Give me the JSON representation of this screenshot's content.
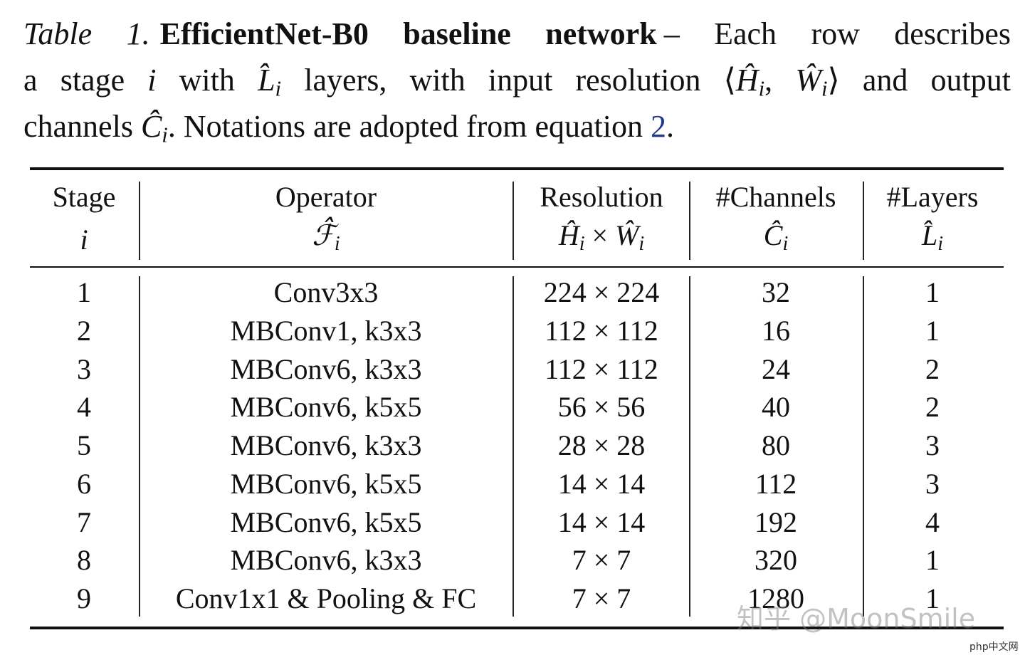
{
  "caption": {
    "lines": [
      [
        {
          "text": "Table 1.",
          "style": "italic"
        },
        {
          "text": "EfficientNet-B0 baseline network",
          "style": "bold"
        },
        {
          "text": "– Each row describes"
        }
      ],
      [
        {
          "text": "a stage "
        },
        {
          "text": "i",
          "style": "math"
        },
        {
          "text": " with "
        },
        {
          "text": "L̂",
          "style": "math",
          "sub": "i"
        },
        {
          "text": " layers, with input resolution ⟨"
        },
        {
          "text": "Ĥ",
          "style": "math",
          "sub": "i"
        },
        {
          "text": ", "
        },
        {
          "text": "Ŵ",
          "style": "math",
          "sub": "i"
        },
        {
          "text": "⟩ and output"
        }
      ],
      [
        {
          "text": "channels "
        },
        {
          "text": "Ĉ",
          "style": "math",
          "sub": "i"
        },
        {
          "text": ". Notations are adopted from equation "
        },
        {
          "text": "2",
          "style": "link"
        },
        {
          "text": "."
        }
      ]
    ]
  },
  "table": {
    "columns": [
      {
        "title": "Stage",
        "symbol": [
          {
            "text": "i",
            "style": "math"
          }
        ]
      },
      {
        "title": "Operator",
        "symbol": [
          {
            "text": "ℱ̂",
            "style": "math",
            "sub": "i"
          }
        ]
      },
      {
        "title": "Resolution",
        "symbol": [
          {
            "text": "Ĥ",
            "style": "math",
            "sub": "i"
          },
          {
            "text": " × "
          },
          {
            "text": "Ŵ",
            "style": "math",
            "sub": "i"
          }
        ]
      },
      {
        "title": "#Channels",
        "symbol": [
          {
            "text": "Ĉ",
            "style": "math",
            "sub": "i"
          }
        ]
      },
      {
        "title": "#Layers",
        "symbol": [
          {
            "text": "L̂",
            "style": "math",
            "sub": "i"
          }
        ]
      }
    ],
    "rows": [
      [
        1,
        "Conv3x3",
        "224 × 224",
        32,
        1
      ],
      [
        2,
        "MBConv1, k3x3",
        "112 × 112",
        16,
        1
      ],
      [
        3,
        "MBConv6, k3x3",
        "112 × 112",
        24,
        2
      ],
      [
        4,
        "MBConv6, k5x5",
        "56 × 56",
        40,
        2
      ],
      [
        5,
        "MBConv6, k3x3",
        "28 × 28",
        80,
        3
      ],
      [
        6,
        "MBConv6, k5x5",
        "14 × 14",
        112,
        3
      ],
      [
        7,
        "MBConv6, k5x5",
        "14 × 14",
        192,
        4
      ],
      [
        8,
        "MBConv6, k3x3",
        "7 × 7",
        320,
        1
      ],
      [
        9,
        "Conv1x1 & Pooling & FC",
        "7 × 7",
        1280,
        1
      ]
    ]
  },
  "watermarks": [
    "知乎 @MoonSmile",
    "php中文网"
  ]
}
